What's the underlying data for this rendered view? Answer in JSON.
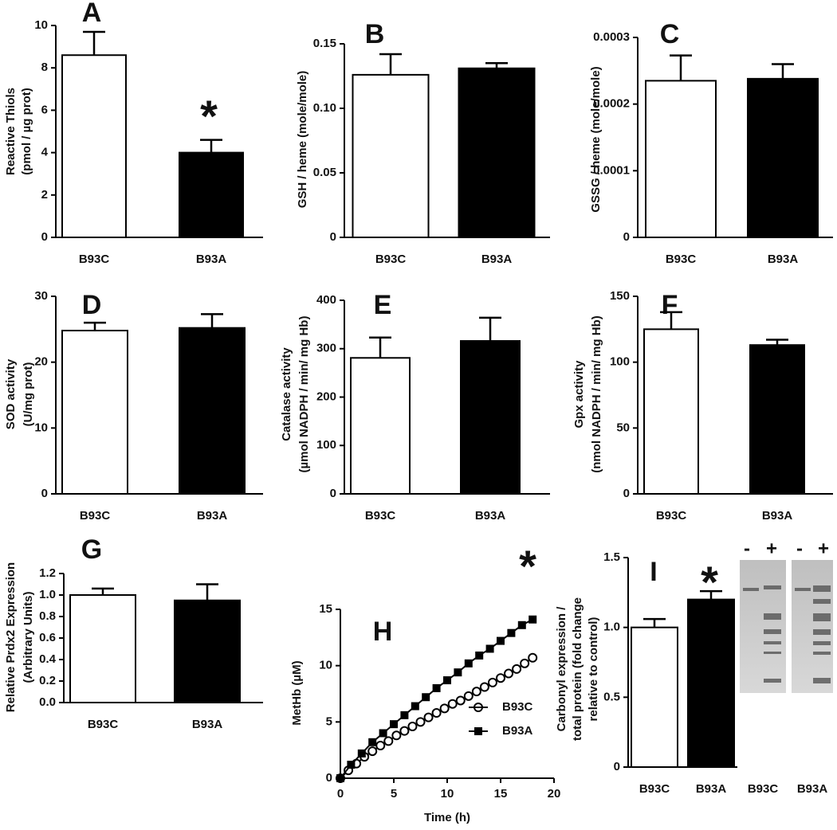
{
  "chart_data": [
    {
      "type": "bar",
      "panel_label": "A",
      "annotation": "*",
      "ylabel": [
        "Reactive Thiols",
        "(pmol / µg prot)"
      ],
      "categories": [
        "B93C",
        "B93A"
      ],
      "values": [
        8.6,
        4.0
      ],
      "errors": [
        1.1,
        0.6
      ],
      "colors": [
        "#ffffff",
        "#000000"
      ],
      "ylim": [
        0,
        10
      ],
      "yticks": [
        0,
        2,
        4,
        6,
        8,
        10
      ]
    },
    {
      "type": "bar",
      "panel_label": "B",
      "ylabel": [
        "GSH / heme (mole/mole)"
      ],
      "categories": [
        "B93C",
        "B93A"
      ],
      "values": [
        0.126,
        0.131
      ],
      "errors": [
        0.016,
        0.004
      ],
      "colors": [
        "#ffffff",
        "#000000"
      ],
      "ylim": [
        0,
        0.15
      ],
      "yticks": [
        0,
        0.05,
        {
          "value": 0.1,
          "label": "0.10"
        },
        0.15
      ]
    },
    {
      "type": "bar",
      "panel_label": "C",
      "ylabel": [
        "GSSG / heme (mole/mole)"
      ],
      "categories": [
        "B93C",
        "B93A"
      ],
      "values": [
        0.000235,
        0.000238
      ],
      "errors": [
        3.8e-05,
        2.2e-05
      ],
      "colors": [
        "#ffffff",
        "#000000"
      ],
      "ylim": [
        0,
        0.0003
      ],
      "yticks": [
        0,
        0.0001,
        0.0002,
        0.0003
      ]
    },
    {
      "type": "bar",
      "panel_label": "D",
      "ylabel": [
        "SOD activity",
        "(U/mg prot)"
      ],
      "categories": [
        "B93C",
        "B93A"
      ],
      "values": [
        24.8,
        25.2
      ],
      "errors": [
        1.2,
        2.1
      ],
      "colors": [
        "#ffffff",
        "#000000"
      ],
      "ylim": [
        0,
        30
      ],
      "yticks": [
        0,
        10,
        20,
        30
      ]
    },
    {
      "type": "bar",
      "panel_label": "E",
      "ylabel": [
        "Catalase activity",
        "(µmol NADPH / min/ mg Hb)"
      ],
      "categories": [
        "B93C",
        "B93A"
      ],
      "values": [
        281,
        316
      ],
      "errors": [
        42,
        48
      ],
      "colors": [
        "#ffffff",
        "#000000"
      ],
      "ylim": [
        0,
        400
      ],
      "yticks": [
        0,
        100,
        200,
        300,
        400
      ]
    },
    {
      "type": "bar",
      "panel_label": "F",
      "ylabel": [
        "Gpx activity",
        "(nmol NADPH / min/ mg Hb)"
      ],
      "categories": [
        "B93C",
        "B93A"
      ],
      "values": [
        125,
        113
      ],
      "errors": [
        13,
        4
      ],
      "colors": [
        "#ffffff",
        "#000000"
      ],
      "ylim": [
        0,
        150
      ],
      "yticks": [
        0,
        50,
        100,
        150
      ]
    },
    {
      "type": "bar",
      "panel_label": "G",
      "ylabel": [
        "Relative Prdx2 Expression",
        "(Arbitrary Units)"
      ],
      "categories": [
        "B93C",
        "B93A"
      ],
      "values": [
        1.0,
        0.95
      ],
      "errors": [
        0.06,
        0.15
      ],
      "colors": [
        "#ffffff",
        "#000000"
      ],
      "ylim": [
        0,
        1.2
      ],
      "yticks": [
        {
          "value": 0,
          "label": "0.0"
        },
        0.2,
        0.4,
        0.6,
        0.8,
        {
          "value": 1,
          "label": "1.0"
        },
        1.2
      ]
    },
    {
      "type": "line",
      "panel_label": "H",
      "annotation": "*",
      "xlabel": "Time (h)",
      "ylabel": [
        "MetHb (µM)"
      ],
      "series": [
        {
          "name": "B93C",
          "color": "#000000",
          "marker": "circle",
          "x": [
            0,
            0.75,
            1.5,
            2.25,
            3,
            3.75,
            4.5,
            5.25,
            6,
            6.75,
            7.5,
            8.25,
            9,
            9.75,
            10.5,
            11.25,
            12,
            12.75,
            13.5,
            14.25,
            15,
            15.75,
            16.5,
            17.25,
            18
          ],
          "values": [
            0,
            0.7,
            1.3,
            1.9,
            2.4,
            2.9,
            3.3,
            3.8,
            4.2,
            4.6,
            5.0,
            5.4,
            5.8,
            6.2,
            6.6,
            6.9,
            7.3,
            7.7,
            8.1,
            8.5,
            8.9,
            9.3,
            9.7,
            10.2,
            10.7
          ]
        },
        {
          "name": "B93A",
          "color": "#000000",
          "marker": "square",
          "x": [
            0,
            1,
            2,
            3,
            4,
            5,
            6,
            7,
            8,
            9,
            10,
            11,
            12,
            13,
            14,
            15,
            16,
            17,
            18
          ],
          "values": [
            0,
            1.2,
            2.2,
            3.2,
            4.0,
            4.8,
            5.6,
            6.4,
            7.2,
            8.0,
            8.7,
            9.4,
            10.2,
            10.9,
            11.5,
            12.2,
            12.9,
            13.6,
            14.1
          ]
        }
      ],
      "xlim": [
        0,
        20
      ],
      "xticks": [
        0,
        5,
        10,
        15,
        20
      ],
      "ylim": [
        0,
        15
      ],
      "yticks": [
        0,
        5,
        10,
        15
      ]
    },
    {
      "type": "bar",
      "panel_label": "I",
      "annotation": "*",
      "ylabel": [
        "Carbonyl expression /",
        "total protein (fold change",
        "relative to control)"
      ],
      "categories": [
        "B93C",
        "B93A"
      ],
      "values": [
        1.0,
        1.2
      ],
      "errors": [
        0.06,
        0.06
      ],
      "colors": [
        "#ffffff",
        "#000000"
      ],
      "ylim": [
        0,
        1.5
      ],
      "yticks": [
        0,
        0.5,
        {
          "value": 1,
          "label": "1.0"
        },
        1.5
      ],
      "blot_lanes": [
        "-",
        "+",
        "-",
        "+"
      ],
      "blot_labels": [
        "B93C",
        "B93A"
      ]
    }
  ]
}
